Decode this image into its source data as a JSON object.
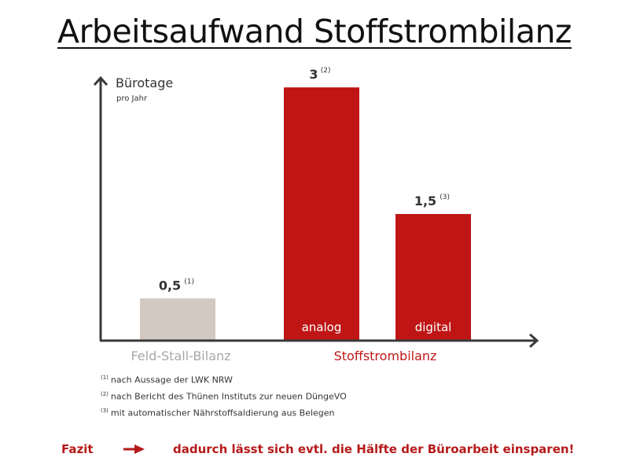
{
  "title": "Arbeitsaufwand Stoffstrombilanz",
  "chart_data": {
    "type": "bar",
    "ylabel": "Bürotage",
    "ylabel_sub": "pro Jahr",
    "ylim": [
      0,
      3.2
    ],
    "grid": false,
    "bars": [
      {
        "category": "",
        "inner_label": "",
        "value": 0.5,
        "value_label": "0,5",
        "note": "(1)",
        "color": "#d3c9c2"
      },
      {
        "category": "",
        "inner_label": "analog",
        "value": 3,
        "value_label": "3",
        "note": "(2)",
        "color": "#bf1515"
      },
      {
        "category": "",
        "inner_label": "digital",
        "value": 1.5,
        "value_label": "1,5",
        "note": "(3)",
        "color": "#bf1515"
      }
    ],
    "groups": [
      {
        "label": "Feld-Stall-Bilanz",
        "color": "#a8a8a8"
      },
      {
        "label": "Stoffstrombilanz",
        "color": "#c01818"
      }
    ]
  },
  "footnotes": [
    {
      "mark": "(1)",
      "text": "nach Aussage der LWK NRW"
    },
    {
      "mark": "(2)",
      "text": "nach Bericht des Thünen Instituts zur neuen DüngeVO"
    },
    {
      "mark": "(3)",
      "text": "mit automatischer Nährstoffsaldierung aus Belegen"
    }
  ],
  "conclusion": {
    "label": "Fazit",
    "text": "dadurch lässt sich evtl. die Hälfte der Büroarbeit einsparen!",
    "color": "#b51a1a"
  }
}
